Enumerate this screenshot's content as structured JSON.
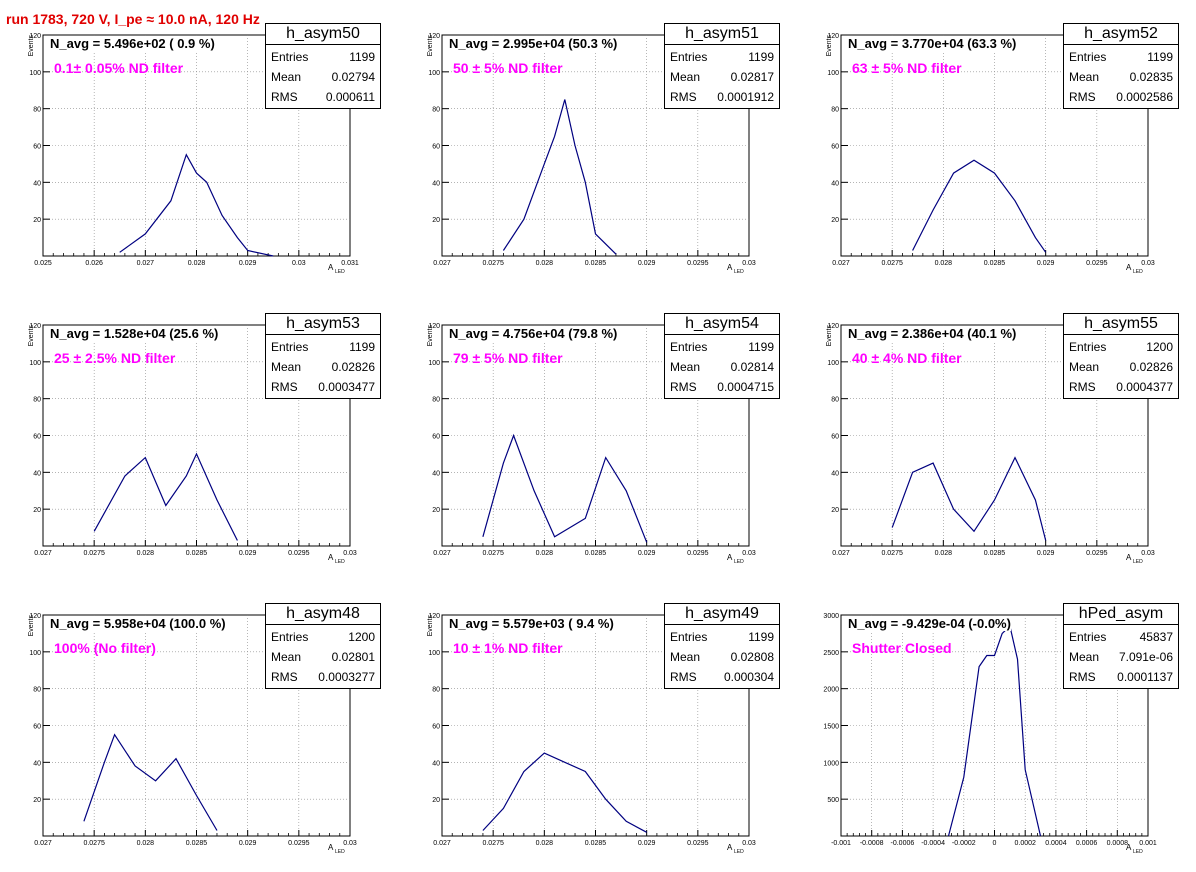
{
  "run_title": "run 1783,   720 V, I_pe ≈ 10.0 nA, 120 Hz",
  "colors": {
    "title": "#e00000",
    "filter": "#ff00ff",
    "hist": "#000080",
    "grid": "#888888"
  },
  "chart_data": [
    {
      "type": "bar",
      "name": "h_asym50",
      "entries": "1199",
      "mean": "0.02794",
      "rms": "0.000611",
      "navg": "N_avg = 5.496e+02 ( 0.9 %)",
      "filter": "0.1± 0.05% ND filter",
      "xlabel": "A",
      "xlabel_sub": "LED",
      "ylabel": "Events",
      "xlim": [
        0.025,
        0.031
      ],
      "ylim": [
        0,
        120
      ],
      "xticks": [
        "0.025",
        "0.026",
        "0.027",
        "0.028",
        "0.029",
        "0.03",
        "0.031"
      ],
      "yticks": [
        "20",
        "40",
        "60",
        "80",
        "100",
        "120"
      ],
      "x": [
        0.0265,
        0.027,
        0.0275,
        0.0278,
        0.028,
        0.0282,
        0.0285,
        0.0288,
        0.029,
        0.0295
      ],
      "y": [
        2,
        12,
        30,
        55,
        45,
        40,
        22,
        10,
        3,
        0
      ]
    },
    {
      "type": "bar",
      "name": "h_asym51",
      "entries": "1199",
      "mean": "0.02817",
      "rms": "0.0001912",
      "navg": "N_avg = 2.995e+04 (50.3 %)",
      "filter": "50 ± 5% ND filter",
      "xlabel": "A",
      "xlabel_sub": "LED",
      "ylabel": "Events",
      "xlim": [
        0.027,
        0.03
      ],
      "ylim": [
        0,
        120
      ],
      "xticks": [
        "0.027",
        "0.0275",
        "0.028",
        "0.0285",
        "0.029",
        "0.0295",
        "0.03"
      ],
      "yticks": [
        "20",
        "40",
        "60",
        "80",
        "100",
        "120"
      ],
      "x": [
        0.0276,
        0.0278,
        0.028,
        0.0281,
        0.0282,
        0.0283,
        0.0284,
        0.0285,
        0.0287
      ],
      "y": [
        3,
        20,
        50,
        65,
        85,
        60,
        40,
        12,
        1
      ]
    },
    {
      "type": "bar",
      "name": "h_asym52",
      "entries": "1199",
      "mean": "0.02835",
      "rms": "0.0002586",
      "navg": "N_avg = 3.770e+04 (63.3 %)",
      "filter": "63 ± 5% ND filter",
      "xlabel": "A",
      "xlabel_sub": "LED",
      "ylabel": "Events",
      "xlim": [
        0.027,
        0.03
      ],
      "ylim": [
        0,
        120
      ],
      "xticks": [
        "0.027",
        "0.0275",
        "0.028",
        "0.0285",
        "0.029",
        "0.0295",
        "0.03"
      ],
      "yticks": [
        "20",
        "40",
        "60",
        "80",
        "100",
        "120"
      ],
      "x": [
        0.0277,
        0.0279,
        0.0281,
        0.0283,
        0.0285,
        0.0287,
        0.0289,
        0.029
      ],
      "y": [
        3,
        25,
        45,
        52,
        45,
        30,
        10,
        2
      ]
    },
    {
      "type": "bar",
      "name": "h_asym53",
      "entries": "1199",
      "mean": "0.02826",
      "rms": "0.0003477",
      "navg": "N_avg = 1.528e+04 (25.6 %)",
      "filter": "25 ± 2.5% ND filter",
      "xlabel": "A",
      "xlabel_sub": "LED",
      "ylabel": "Events",
      "xlim": [
        0.027,
        0.03
      ],
      "ylim": [
        0,
        120
      ],
      "xticks": [
        "0.027",
        "0.0275",
        "0.028",
        "0.0285",
        "0.029",
        "0.0295",
        "0.03"
      ],
      "yticks": [
        "20",
        "40",
        "60",
        "80",
        "100",
        "120"
      ],
      "x": [
        0.0275,
        0.0278,
        0.028,
        0.0282,
        0.0284,
        0.0285,
        0.0287,
        0.0289
      ],
      "y": [
        8,
        38,
        48,
        22,
        38,
        50,
        25,
        3
      ]
    },
    {
      "type": "bar",
      "name": "h_asym54",
      "entries": "1199",
      "mean": "0.02814",
      "rms": "0.0004715",
      "navg": "N_avg = 4.756e+04 (79.8 %)",
      "filter": "79 ± 5% ND filter",
      "xlabel": "A",
      "xlabel_sub": "LED",
      "ylabel": "Events",
      "xlim": [
        0.027,
        0.03
      ],
      "ylim": [
        0,
        120
      ],
      "xticks": [
        "0.027",
        "0.0275",
        "0.028",
        "0.0285",
        "0.029",
        "0.0295",
        "0.03"
      ],
      "yticks": [
        "20",
        "40",
        "60",
        "80",
        "100",
        "120"
      ],
      "x": [
        0.0274,
        0.0276,
        0.0277,
        0.0279,
        0.0281,
        0.0284,
        0.0286,
        0.0288,
        0.029
      ],
      "y": [
        5,
        45,
        60,
        30,
        5,
        15,
        48,
        30,
        2
      ]
    },
    {
      "type": "bar",
      "name": "h_asym55",
      "entries": "1200",
      "mean": "0.02826",
      "rms": "0.0004377",
      "navg": "N_avg = 2.386e+04 (40.1 %)",
      "filter": "40 ± 4% ND filter",
      "xlabel": "A",
      "xlabel_sub": "LED",
      "ylabel": "Events",
      "xlim": [
        0.027,
        0.03
      ],
      "ylim": [
        0,
        120
      ],
      "xticks": [
        "0.027",
        "0.0275",
        "0.028",
        "0.0285",
        "0.029",
        "0.0295",
        "0.03"
      ],
      "yticks": [
        "20",
        "40",
        "60",
        "80",
        "100",
        "120"
      ],
      "x": [
        0.0275,
        0.0277,
        0.0279,
        0.0281,
        0.0283,
        0.0285,
        0.0287,
        0.0289,
        0.029
      ],
      "y": [
        10,
        40,
        45,
        20,
        8,
        25,
        48,
        25,
        3
      ]
    },
    {
      "type": "bar",
      "name": "h_asym48",
      "entries": "1200",
      "mean": "0.02801",
      "rms": "0.0003277",
      "navg": "N_avg = 5.958e+04 (100.0 %)",
      "filter": "100% (No filter)",
      "xlabel": "A",
      "xlabel_sub": "LED",
      "ylabel": "Events",
      "xlim": [
        0.027,
        0.03
      ],
      "ylim": [
        0,
        120
      ],
      "xticks": [
        "0.027",
        "0.0275",
        "0.028",
        "0.0285",
        "0.029",
        "0.0295",
        "0.03"
      ],
      "yticks": [
        "20",
        "40",
        "60",
        "80",
        "100",
        "120"
      ],
      "x": [
        0.0274,
        0.0276,
        0.0277,
        0.0279,
        0.0281,
        0.0283,
        0.0285,
        0.0287
      ],
      "y": [
        8,
        40,
        55,
        38,
        30,
        42,
        22,
        3
      ]
    },
    {
      "type": "bar",
      "name": "h_asym49",
      "entries": "1199",
      "mean": "0.02808",
      "rms": "0.000304",
      "navg": "N_avg = 5.579e+03 ( 9.4 %)",
      "filter": "10 ± 1% ND filter",
      "xlabel": "A",
      "xlabel_sub": "LED",
      "ylabel": "Events",
      "xlim": [
        0.027,
        0.03
      ],
      "ylim": [
        0,
        120
      ],
      "xticks": [
        "0.027",
        "0.0275",
        "0.028",
        "0.0285",
        "0.029",
        "0.0295",
        "0.03"
      ],
      "yticks": [
        "20",
        "40",
        "60",
        "80",
        "100",
        "120"
      ],
      "x": [
        0.0274,
        0.0276,
        0.0278,
        0.028,
        0.0282,
        0.0284,
        0.0286,
        0.0288,
        0.029
      ],
      "y": [
        3,
        15,
        35,
        45,
        40,
        35,
        20,
        8,
        2
      ]
    },
    {
      "type": "bar",
      "name": "hPed_asym",
      "entries": "45837",
      "mean": "7.091e-06",
      "rms": "0.0001137",
      "navg": "N_avg = -9.429e-04 (-0.0%)",
      "filter": "Shutter Closed",
      "xlabel": "A",
      "xlabel_sub": "LED",
      "ylabel": "",
      "xlim": [
        -0.001,
        0.001
      ],
      "ylim": [
        0,
        3000
      ],
      "xticks": [
        "-0.001",
        "-0.0008",
        "-0.0006",
        "-0.0004",
        "-0.0002",
        "0",
        "0.0002",
        "0.0004",
        "0.0006",
        "0.0008",
        "0.001"
      ],
      "yticks": [
        "500",
        "1000",
        "1500",
        "2000",
        "2500",
        "3000"
      ],
      "x": [
        -0.0003,
        -0.0002,
        -0.0001,
        -5e-05,
        0,
        5e-05,
        0.0001,
        0.00015,
        0.0002,
        0.0003
      ],
      "y": [
        0,
        800,
        2300,
        2450,
        2450,
        2750,
        2850,
        2400,
        900,
        0
      ]
    }
  ]
}
